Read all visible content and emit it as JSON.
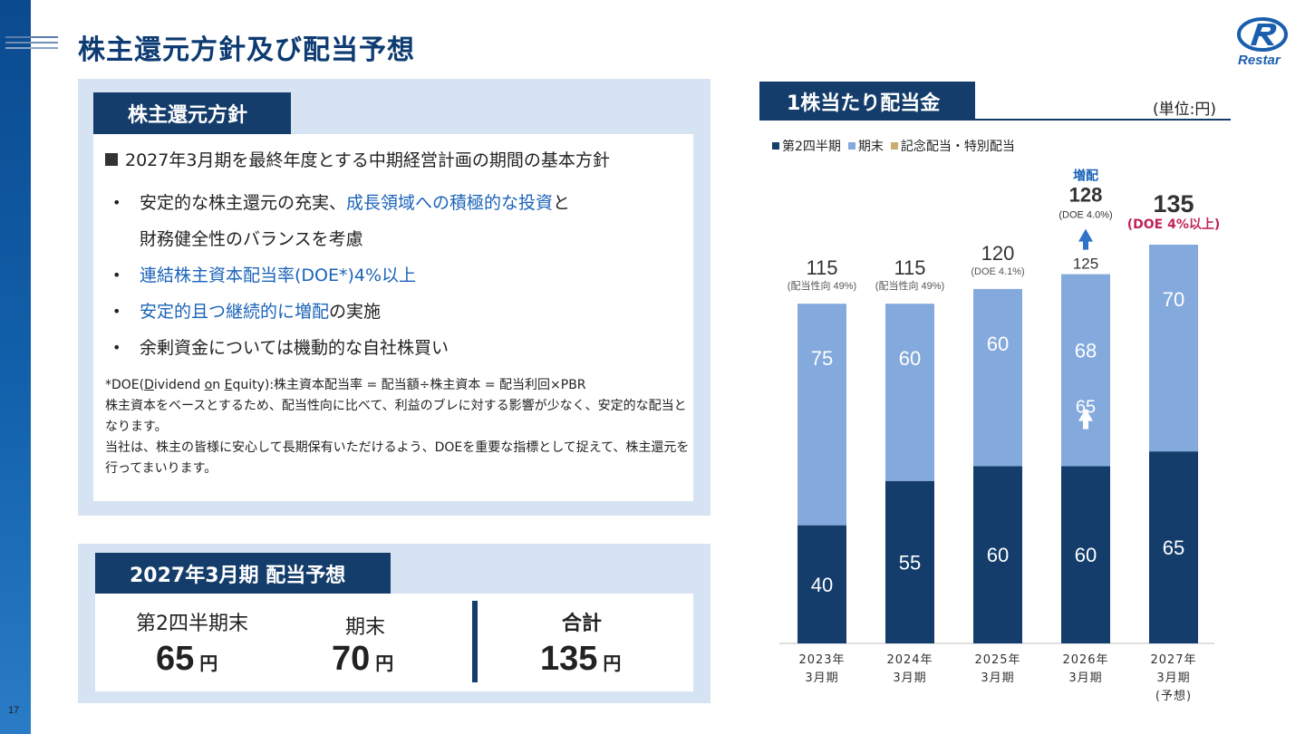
{
  "page": {
    "title": "株主還元方針及び配当予想",
    "number": "17",
    "logo_text": "Restar"
  },
  "policy": {
    "tab": "株主還元方針",
    "heading": "2027年3月期を最終年度とする中期経営計画の期間の基本方針",
    "bullet1_a": "安定的な株主還元の充実、",
    "bullet1_b": "成長領域への積極的な投資",
    "bullet1_c": "と",
    "bullet1_d": "財務健全性のバランスを考慮",
    "bullet2": "連結株主資本配当率(DOE*)4%以上",
    "bullet3_a": "安定的且つ継続的に増配",
    "bullet3_b": "の実施",
    "bullet4": "余剰資金については機動的な自社株買い",
    "note_line1_a": "*DOE(",
    "note_line1_d": "D",
    "note_line1_e": "ividend ",
    "note_line1_o": "o",
    "note_line1_n": "n ",
    "note_line1_E": "E",
    "note_line1_q": "quity):株主資本配当率 = 配当額÷株主資本 = 配当利回×PBR",
    "note_line2": "株主資本をベースとするため、配当性向に比べて、利益のブレに対する影響が少なく、安定的な配当となります。",
    "note_line3": "当社は、株主の皆様に安心して長期保有いただけるよう、DOEを重要な指標として捉えて、株主還元を行ってまいります。"
  },
  "forecast": {
    "tab": "2027年3月期 配当予想",
    "q2_label": "第2四半期末",
    "q2_value": "65",
    "ye_label": "期末",
    "ye_value": "70",
    "total_label": "合計",
    "total_value": "135",
    "unit": "円"
  },
  "chart_header": {
    "tab": "1株当たり配当金",
    "unit_note": "(単位:円)"
  },
  "colors": {
    "navy": "#143d6b",
    "light_blue": "#84a9dc",
    "gold": "#c9ae6e",
    "highlight_red": "#c0245c",
    "blue_text": "#1a63b8"
  },
  "chart_data": {
    "type": "bar",
    "stacked": true,
    "categories": [
      [
        "2023年",
        "3月期"
      ],
      [
        "2024年",
        "3月期"
      ],
      [
        "2025年",
        "3月期"
      ],
      [
        "2026年",
        "3月期"
      ],
      [
        "2027年",
        "3月期",
        "(予想)"
      ]
    ],
    "series": [
      {
        "name": "第2四半期",
        "color": "#143d6b",
        "values": [
          40,
          55,
          60,
          60,
          65
        ]
      },
      {
        "name": "期末",
        "color": "#84a9dc",
        "values": [
          75,
          60,
          60,
          65,
          70
        ]
      },
      {
        "name": "記念配当・特別配当",
        "color": "#c9ae6e",
        "values": [
          0,
          0,
          0,
          0,
          0
        ]
      }
    ],
    "totals": [
      "115",
      "115",
      "120",
      "125",
      "135"
    ],
    "total_notes": [
      "(配当性向 49%)",
      "(配当性向 49%)",
      "(DOE 4.1%)",
      "",
      "(DOE 4%以上)"
    ],
    "revision": {
      "category_index": 3,
      "label": "増配",
      "total": "128",
      "note": "(DOE 4.0%)",
      "period_end_revised": "68"
    },
    "ylim": [
      0,
      135
    ]
  }
}
